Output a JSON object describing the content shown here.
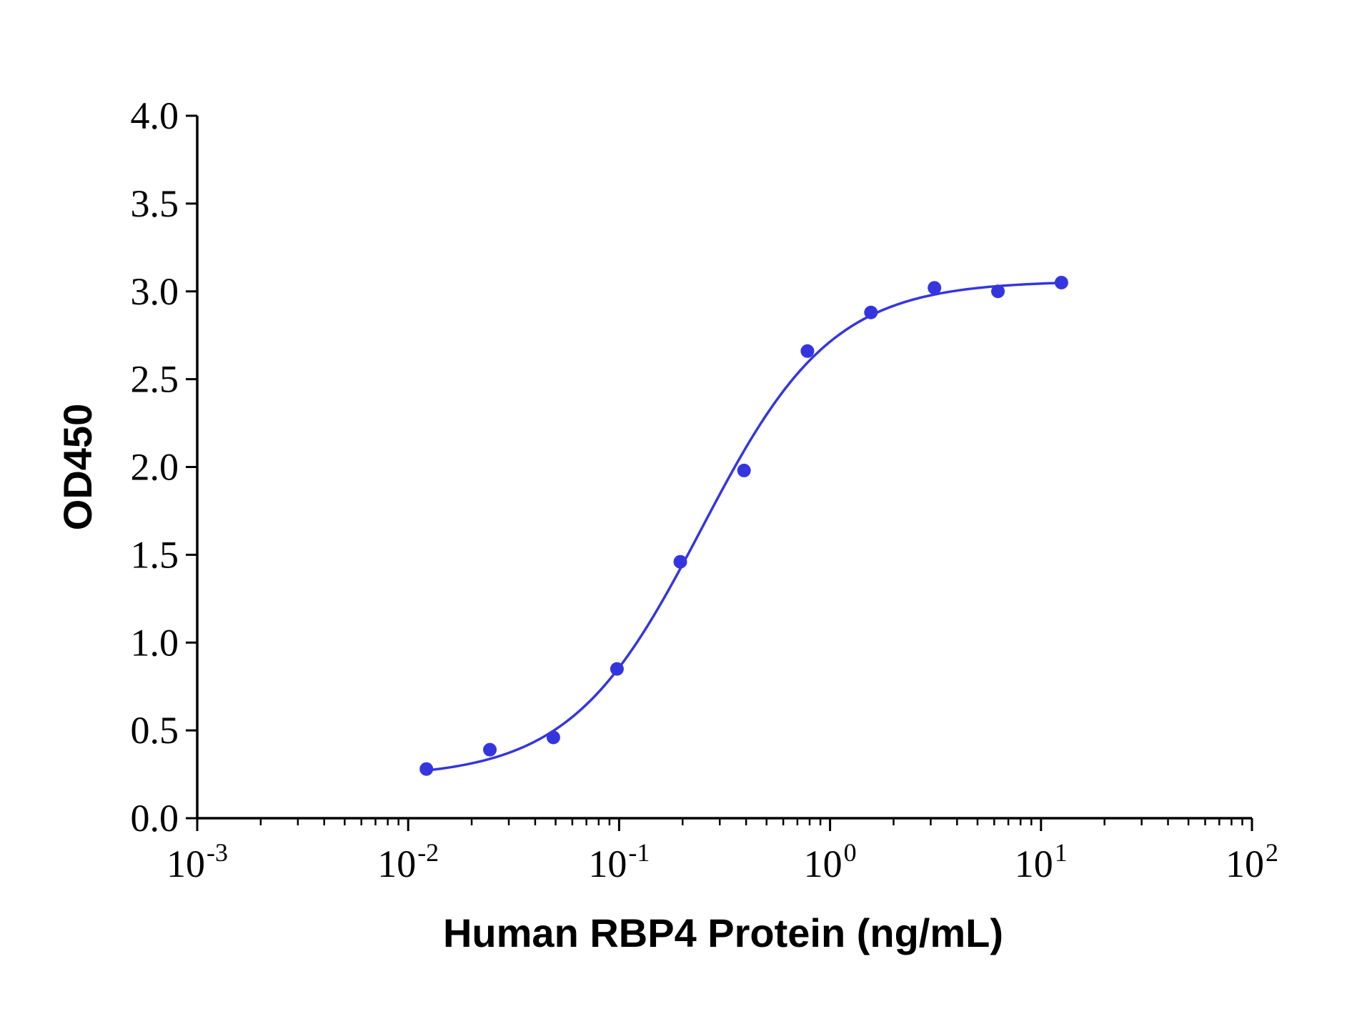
{
  "chart_data": {
    "type": "scatter",
    "title": "",
    "xlabel": "Human RBP4 Protein (ng/mL)",
    "ylabel": "OD450",
    "x_scale": "log",
    "xlim": [
      0.001,
      100
    ],
    "ylim": [
      0,
      4
    ],
    "x_ticks": [
      {
        "value": 0.001,
        "base": "10",
        "exp": "-3"
      },
      {
        "value": 0.01,
        "base": "10",
        "exp": "-2"
      },
      {
        "value": 0.1,
        "base": "10",
        "exp": "-1"
      },
      {
        "value": 1,
        "base": "10",
        "exp": "0"
      },
      {
        "value": 10,
        "base": "10",
        "exp": "1"
      },
      {
        "value": 100,
        "base": "10",
        "exp": "2"
      }
    ],
    "y_ticks": [
      "0.0",
      "0.5",
      "1.0",
      "1.5",
      "2.0",
      "2.5",
      "3.0",
      "3.5",
      "4.0"
    ],
    "grid": false,
    "color": "#3535e0",
    "series": [
      {
        "points": [
          {
            "x": 0.0122,
            "y": 0.28
          },
          {
            "x": 0.0244,
            "y": 0.39
          },
          {
            "x": 0.0488,
            "y": 0.46
          },
          {
            "x": 0.0977,
            "y": 0.85
          },
          {
            "x": 0.195,
            "y": 1.46
          },
          {
            "x": 0.391,
            "y": 1.98
          },
          {
            "x": 0.781,
            "y": 2.66
          },
          {
            "x": 1.5625,
            "y": 2.88
          },
          {
            "x": 3.125,
            "y": 3.02
          },
          {
            "x": 6.25,
            "y": 3.0
          },
          {
            "x": 12.5,
            "y": 3.05
          }
        ],
        "fit": {
          "model": "4PL",
          "bottom": 0.23,
          "top": 3.06,
          "ec50": 0.245,
          "hill": 1.4,
          "x_range": [
            0.0122,
            12.5
          ]
        }
      }
    ]
  }
}
